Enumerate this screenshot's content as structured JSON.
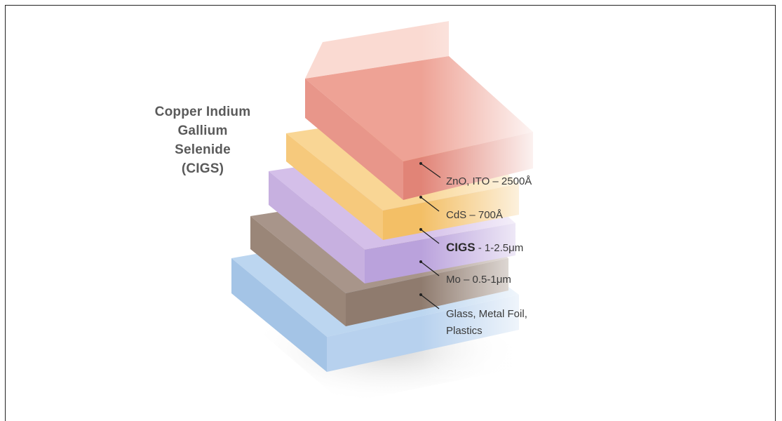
{
  "title": {
    "line1": "Copper Indium",
    "line2": "Gallium Selenide",
    "line3": "(CIGS)"
  },
  "layers": [
    {
      "id": "zno",
      "text": "ZnO, ITO – 2500Å",
      "color": "#e99080"
    },
    {
      "id": "cds",
      "text": "CdS – 700Å",
      "color": "#f8cc7c"
    },
    {
      "id": "cigs",
      "bold": "CIGS",
      "text": " - 1-2.5μm",
      "color": "#c9aee0"
    },
    {
      "id": "mo",
      "text": "Mo – 0.5-1μm",
      "color": "#9e8a7c"
    },
    {
      "id": "substrate",
      "line1": "Glass, Metal Foil,",
      "line2": "Plastics",
      "color": "#a9c9ea"
    }
  ]
}
